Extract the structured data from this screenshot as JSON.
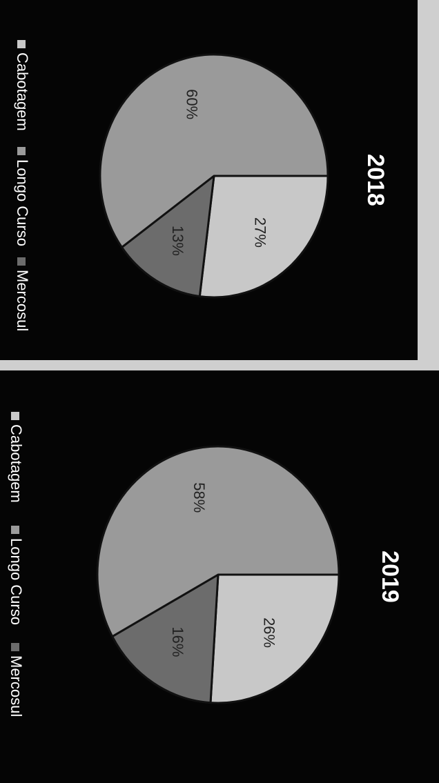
{
  "chart_data": [
    {
      "type": "pie",
      "title": "2018",
      "categories": [
        "Cabotagem",
        "Longo Curso",
        "Mercosul"
      ],
      "values": [
        27,
        60,
        13
      ],
      "labels": [
        "27%",
        "60%",
        "13%"
      ],
      "legend": "bottom",
      "colors": [
        "#c8c8c8",
        "#9a9a9a",
        "#6c6c6c"
      ]
    },
    {
      "type": "pie",
      "title": "2019",
      "categories": [
        "Cabotagem",
        "Longo Curso",
        "Mercosul"
      ],
      "values": [
        26,
        58,
        16
      ],
      "labels": [
        "26%",
        "58%",
        "16%"
      ],
      "legend": "bottom",
      "colors": [
        "#c8c8c8",
        "#9a9a9a",
        "#6c6c6c"
      ]
    }
  ]
}
